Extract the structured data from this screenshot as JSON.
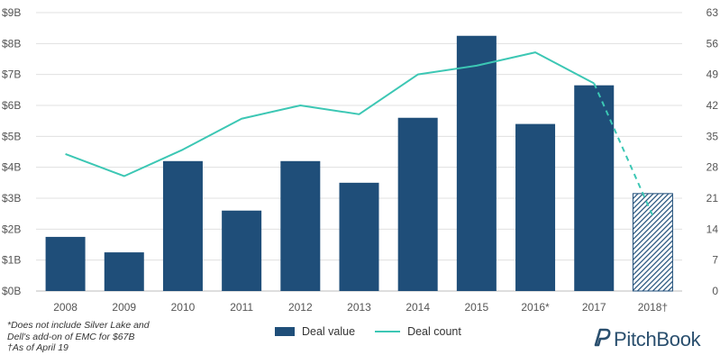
{
  "chart_data": {
    "type": "bar",
    "categories": [
      "2008",
      "2009",
      "2010",
      "2011",
      "2012",
      "2013",
      "2014",
      "2015",
      "2016*",
      "2017",
      "2018†"
    ],
    "series": [
      {
        "name": "Deal value",
        "kind": "bar",
        "axis": "left",
        "values": [
          1.75,
          1.25,
          4.2,
          2.6,
          4.2,
          3.5,
          5.6,
          8.25,
          5.4,
          6.65,
          3.15
        ],
        "hatched_last": true
      },
      {
        "name": "Deal count",
        "kind": "line",
        "axis": "right",
        "values": [
          31,
          26,
          32,
          39,
          42,
          40,
          49,
          51,
          54,
          47,
          17
        ],
        "dashed_last_segment": true
      }
    ],
    "left_axis": {
      "ticks": [
        "$0B",
        "$1B",
        "$2B",
        "$3B",
        "$4B",
        "$5B",
        "$6B",
        "$7B",
        "$8B",
        "$9B"
      ],
      "ylim": [
        0,
        9
      ]
    },
    "right_axis": {
      "ticks": [
        "0",
        "7",
        "14",
        "21",
        "28",
        "35",
        "42",
        "49",
        "56",
        "63"
      ],
      "ylim": [
        0,
        63
      ]
    },
    "grid": true,
    "legend_position": "bottom",
    "colors": {
      "bar": "#1f4e79",
      "line": "#3cc7b4",
      "grid": "#e0e0e0"
    }
  },
  "footnote": {
    "line1": "*Does not include Silver Lake and",
    "line2": "Dell's add-on of EMC for $67B",
    "line3": "†As of April 19"
  },
  "legend": {
    "bar_label": "Deal value",
    "line_label": "Deal count"
  },
  "brand": {
    "name": "PitchBook",
    "icon": "pitchbook-logo-icon"
  }
}
